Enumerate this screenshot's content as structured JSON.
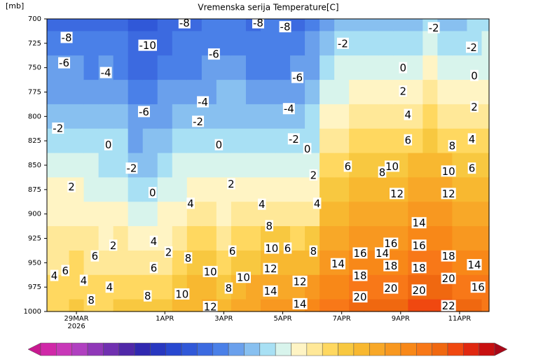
{
  "chart_data": {
    "type": "contour",
    "title": "Vremenska serija Temperature[C]",
    "y_label": "[mb]",
    "xlim": [
      "2026-03-28T00:00Z",
      "2026-04-12T00:00Z"
    ],
    "ylim": [
      1000,
      700
    ],
    "yticks": [
      700,
      725,
      750,
      775,
      800,
      825,
      850,
      875,
      900,
      925,
      950,
      975,
      1000
    ],
    "xticks": [
      {
        "value": "2026-03-29T00:00Z",
        "label": "29MAR\n2026"
      },
      {
        "value": "2026-04-01T00:00Z",
        "label": "1APR"
      },
      {
        "value": "2026-04-03T00:00Z",
        "label": "3APR"
      },
      {
        "value": "2026-04-05T00:00Z",
        "label": "5APR"
      },
      {
        "value": "2026-04-07T00:00Z",
        "label": "7APR"
      },
      {
        "value": "2026-04-09T00:00Z",
        "label": "9APR"
      },
      {
        "value": "2026-04-11T00:00Z",
        "label": "11APR"
      }
    ],
    "x": [
      "2026-03-28T00:00Z",
      "2026-03-28T12:00Z",
      "2026-03-29T00:00Z",
      "2026-03-29T12:00Z",
      "2026-03-30T00:00Z",
      "2026-03-30T12:00Z",
      "2026-03-31T00:00Z",
      "2026-03-31T12:00Z",
      "2026-04-01T00:00Z",
      "2026-04-01T12:00Z",
      "2026-04-02T00:00Z",
      "2026-04-02T12:00Z",
      "2026-04-03T00:00Z",
      "2026-04-03T12:00Z",
      "2026-04-04T00:00Z",
      "2026-04-04T12:00Z",
      "2026-04-05T00:00Z",
      "2026-04-05T12:00Z",
      "2026-04-06T00:00Z",
      "2026-04-06T12:00Z",
      "2026-04-07T00:00Z",
      "2026-04-07T12:00Z",
      "2026-04-08T00:00Z",
      "2026-04-08T12:00Z",
      "2026-04-09T00:00Z",
      "2026-04-09T12:00Z",
      "2026-04-10T00:00Z",
      "2026-04-10T12:00Z",
      "2026-04-11T00:00Z",
      "2026-04-11T12:00Z",
      "2026-04-12T00:00Z"
    ],
    "y": [
      700,
      725,
      750,
      775,
      800,
      825,
      850,
      875,
      900,
      925,
      950,
      975,
      1000
    ],
    "z": [
      [
        -9,
        -8,
        -6,
        -5,
        -3,
        -2,
        0,
        2,
        3,
        4,
        5,
        6,
        7
      ],
      [
        -9,
        -8,
        -6,
        -5,
        -3,
        -2,
        0,
        2,
        3,
        4,
        5,
        6,
        7
      ],
      [
        -9,
        -8,
        -6,
        -5,
        -3,
        -1,
        0,
        2,
        3,
        4,
        6,
        7,
        8
      ],
      [
        -9,
        -8,
        -7,
        -5,
        -4,
        -2,
        0,
        1,
        3,
        4,
        5,
        6,
        7
      ],
      [
        -9,
        -8,
        -6,
        -5,
        -4,
        -2,
        -1,
        1,
        2,
        3,
        5,
        6,
        7
      ],
      [
        -10,
        -8,
        -7,
        -5,
        -4,
        -2,
        -1,
        1,
        2,
        4,
        5,
        7,
        8
      ],
      [
        -11,
        -10,
        -9,
        -7,
        -6,
        -5,
        -3,
        -1,
        1,
        3,
        5,
        7,
        8
      ],
      [
        -11,
        -10,
        -9,
        -7,
        -6,
        -4,
        -3,
        -1,
        1,
        3,
        5,
        7,
        8
      ],
      [
        -10,
        -9,
        -8,
        -6,
        -5,
        -3,
        -2,
        0,
        2,
        3,
        5,
        7,
        9
      ],
      [
        -9,
        -8,
        -7,
        -5,
        -3,
        -2,
        0,
        1,
        3,
        5,
        7,
        9,
        10
      ],
      [
        -9,
        -8,
        -7,
        -5,
        -3,
        -1,
        0,
        2,
        4,
        6,
        8,
        10,
        11
      ],
      [
        -8,
        -7,
        -6,
        -5,
        -3,
        -1,
        1,
        2,
        4,
        6,
        8,
        10,
        12
      ],
      [
        -8,
        -7,
        -6,
        -4,
        -3,
        -1,
        0,
        2,
        3,
        5,
        7,
        9,
        11
      ],
      [
        -8,
        -7,
        -6,
        -4,
        -3,
        -1,
        1,
        2,
        4,
        6,
        9,
        11,
        13
      ],
      [
        -9,
        -8,
        -7,
        -5,
        -3,
        -1,
        1,
        2,
        4,
        7,
        9,
        12,
        13
      ],
      [
        -8,
        -8,
        -7,
        -5,
        -4,
        -2,
        0,
        2,
        5,
        8,
        11,
        13,
        14
      ],
      [
        -8,
        -8,
        -7,
        -6,
        -4,
        -2,
        0,
        2,
        5,
        8,
        11,
        13,
        15
      ],
      [
        -9,
        -7,
        -6,
        -5,
        -4,
        -2,
        0,
        2,
        4,
        7,
        10,
        12,
        14
      ],
      [
        -7,
        -6,
        -5,
        -3,
        -2,
        -1,
        1,
        3,
        5,
        8,
        11,
        14,
        17
      ],
      [
        -5,
        -3,
        -1,
        1,
        3,
        4,
        6,
        8,
        10,
        12,
        14,
        16,
        18
      ],
      [
        -4,
        -2,
        0,
        1,
        3,
        5,
        7,
        9,
        11,
        13,
        15,
        17,
        19
      ],
      [
        -3,
        -1,
        1,
        2,
        4,
        6,
        8,
        10,
        12,
        14,
        16,
        18,
        20
      ],
      [
        -4,
        -2,
        0,
        2,
        4,
        6,
        8,
        10,
        12,
        14,
        16,
        18,
        20
      ],
      [
        -3,
        -1,
        1,
        3,
        5,
        7,
        9,
        11,
        13,
        15,
        17,
        19,
        21
      ],
      [
        -3,
        -1,
        1,
        3,
        5,
        7,
        9,
        11,
        13,
        15,
        17,
        19,
        21
      ],
      [
        -3,
        -1,
        1,
        3,
        5,
        7,
        10,
        12,
        14,
        16,
        18,
        20,
        22
      ],
      [
        -2,
        0,
        2,
        4,
        6,
        8,
        10,
        12,
        14,
        16,
        18,
        20,
        22
      ],
      [
        -3,
        -1,
        1,
        3,
        5,
        7,
        10,
        12,
        14,
        16,
        18,
        20,
        22
      ],
      [
        -3,
        -2,
        0,
        2,
        4,
        7,
        9,
        11,
        13,
        15,
        17,
        19,
        21
      ],
      [
        -2,
        -1,
        1,
        3,
        5,
        7,
        9,
        11,
        13,
        15,
        17,
        19,
        20
      ],
      [
        -1,
        0,
        1,
        2,
        4,
        6,
        8,
        10,
        12,
        14,
        16,
        18,
        19
      ]
    ],
    "levels": [
      -30,
      -28,
      -26,
      -24,
      -22,
      -20,
      -18,
      -16,
      -14,
      -12,
      -10,
      -8,
      -6,
      -4,
      -2,
      0,
      2,
      4,
      6,
      8,
      10,
      12,
      14,
      16,
      18,
      20,
      22,
      24,
      26,
      28
    ],
    "colors": [
      "#c81890",
      "#d028a8",
      "#c838b8",
      "#b040c0",
      "#9038b8",
      "#7030b0",
      "#5028a8",
      "#3028b0",
      "#2838c0",
      "#2848d0",
      "#3058d8",
      "#3c6ae0",
      "#4a80e8",
      "#6aa0ec",
      "#88c0f0",
      "#a8e0f4",
      "#d8f4ec",
      "#fff4c4",
      "#ffe898",
      "#ffd860",
      "#f8c840",
      "#f8b830",
      "#f8a828",
      "#f89820",
      "#f88818",
      "#f87818",
      "#f06810",
      "#f04810",
      "#e02810",
      "#c81010",
      "#a80818"
    ],
    "contour_labels": [
      {
        "x": "2026-03-28T16:00Z",
        "y": 719,
        "value": -8
      },
      {
        "x": "2026-03-28T14:00Z",
        "y": 745,
        "value": -6
      },
      {
        "x": "2026-03-28T09:00Z",
        "y": 812,
        "value": -2
      },
      {
        "x": "2026-03-28T20:00Z",
        "y": 872,
        "value": 2
      },
      {
        "x": "2026-03-28T06:00Z",
        "y": 963,
        "value": 4
      },
      {
        "x": "2026-03-28T15:00Z",
        "y": 958,
        "value": 6
      },
      {
        "x": "2026-03-29T06:00Z",
        "y": 968,
        "value": 4
      },
      {
        "x": "2026-03-30T00:00Z",
        "y": 755,
        "value": -4
      },
      {
        "x": "2026-03-30T02:00Z",
        "y": 829,
        "value": 0
      },
      {
        "x": "2026-03-29T12:00Z",
        "y": 988,
        "value": 8
      },
      {
        "x": "2026-03-29T15:00Z",
        "y": 943,
        "value": 6
      },
      {
        "x": "2026-03-30T03:00Z",
        "y": 975,
        "value": 4
      },
      {
        "x": "2026-03-30T06:00Z",
        "y": 932,
        "value": 2
      },
      {
        "x": "2026-03-31T10:00Z",
        "y": 727,
        "value": -10
      },
      {
        "x": "2026-03-31T07:00Z",
        "y": 795,
        "value": -6
      },
      {
        "x": "2026-03-30T21:00Z",
        "y": 853,
        "value": -2
      },
      {
        "x": "2026-03-31T14:00Z",
        "y": 878,
        "value": 0
      },
      {
        "x": "2026-03-31T15:00Z",
        "y": 955,
        "value": 6
      },
      {
        "x": "2026-03-31T10:00Z",
        "y": 984,
        "value": 8
      },
      {
        "x": "2026-03-31T15:00Z",
        "y": 928,
        "value": 4
      },
      {
        "x": "2026-04-01T03:00Z",
        "y": 939,
        "value": 2
      },
      {
        "x": "2026-04-01T19:00Z",
        "y": 945,
        "value": 8
      },
      {
        "x": "2026-04-01T14:00Z",
        "y": 982,
        "value": 10
      },
      {
        "x": "2026-04-01T21:00Z",
        "y": 889,
        "value": 4
      },
      {
        "x": "2026-04-02T03:00Z",
        "y": 805,
        "value": -2
      },
      {
        "x": "2026-04-02T07:00Z",
        "y": 785,
        "value": -4
      },
      {
        "x": "2026-04-02T16:00Z",
        "y": 736,
        "value": -6
      },
      {
        "x": "2026-04-01T16:00Z",
        "y": 704,
        "value": -8
      },
      {
        "x": "2026-04-02T20:00Z",
        "y": 829,
        "value": 0
      },
      {
        "x": "2026-04-03T06:00Z",
        "y": 869,
        "value": 2
      },
      {
        "x": "2026-04-03T07:00Z",
        "y": 938,
        "value": 6
      },
      {
        "x": "2026-04-02T13:00Z",
        "y": 959,
        "value": 10
      },
      {
        "x": "2026-04-03T04:00Z",
        "y": 976,
        "value": 8
      },
      {
        "x": "2026-04-02T13:00Z",
        "y": 995,
        "value": 12
      },
      {
        "x": "2026-04-03T16:00Z",
        "y": 965,
        "value": 10
      },
      {
        "x": "2026-04-04T04:00Z",
        "y": 704,
        "value": -8
      },
      {
        "x": "2026-04-05T02:00Z",
        "y": 708,
        "value": -8
      },
      {
        "x": "2026-04-05T12:00Z",
        "y": 760,
        "value": -6
      },
      {
        "x": "2026-04-05T05:00Z",
        "y": 792,
        "value": -4
      },
      {
        "x": "2026-04-05T09:00Z",
        "y": 823,
        "value": -2
      },
      {
        "x": "2026-04-05T20:00Z",
        "y": 833,
        "value": 0
      },
      {
        "x": "2026-04-04T07:00Z",
        "y": 890,
        "value": 4
      },
      {
        "x": "2026-04-04T13:00Z",
        "y": 912,
        "value": 8
      },
      {
        "x": "2026-04-04T15:00Z",
        "y": 935,
        "value": 10
      },
      {
        "x": "2026-04-05T04:00Z",
        "y": 935,
        "value": 6
      },
      {
        "x": "2026-04-04T14:00Z",
        "y": 956,
        "value": 12
      },
      {
        "x": "2026-04-04T14:00Z",
        "y": 979,
        "value": 14
      },
      {
        "x": "2026-04-05T14:00Z",
        "y": 969,
        "value": 12
      },
      {
        "x": "2026-04-05T14:00Z",
        "y": 992,
        "value": 14
      },
      {
        "x": "2026-04-06T01:00Z",
        "y": 938,
        "value": 8
      },
      {
        "x": "2026-04-06T04:00Z",
        "y": 889,
        "value": 4
      },
      {
        "x": "2026-04-06T01:00Z",
        "y": 860,
        "value": 2
      },
      {
        "x": "2026-04-07T01:00Z",
        "y": 725,
        "value": -2
      },
      {
        "x": "2026-04-07T05:00Z",
        "y": 851,
        "value": 6
      },
      {
        "x": "2026-04-06T21:00Z",
        "y": 951,
        "value": 14
      },
      {
        "x": "2026-04-07T15:00Z",
        "y": 940,
        "value": 16
      },
      {
        "x": "2026-04-07T15:00Z",
        "y": 963,
        "value": 18
      },
      {
        "x": "2026-04-07T15:00Z",
        "y": 985,
        "value": 20
      },
      {
        "x": "2026-04-08T09:00Z",
        "y": 857,
        "value": 8
      },
      {
        "x": "2026-04-08T17:00Z",
        "y": 851,
        "value": 10
      },
      {
        "x": "2026-04-08T21:00Z",
        "y": 879,
        "value": 12
      },
      {
        "x": "2026-04-08T09:00Z",
        "y": 940,
        "value": 14
      },
      {
        "x": "2026-04-08T16:00Z",
        "y": 930,
        "value": 16
      },
      {
        "x": "2026-04-08T16:00Z",
        "y": 953,
        "value": 18
      },
      {
        "x": "2026-04-08T16:00Z",
        "y": 976,
        "value": 20
      },
      {
        "x": "2026-04-09T02:00Z",
        "y": 750,
        "value": 0
      },
      {
        "x": "2026-04-09T02:00Z",
        "y": 774,
        "value": 2
      },
      {
        "x": "2026-04-09T06:00Z",
        "y": 798,
        "value": 4
      },
      {
        "x": "2026-04-09T06:00Z",
        "y": 824,
        "value": 6
      },
      {
        "x": "2026-04-09T15:00Z",
        "y": 909,
        "value": 14
      },
      {
        "x": "2026-04-09T15:00Z",
        "y": 932,
        "value": 16
      },
      {
        "x": "2026-04-09T15:00Z",
        "y": 955,
        "value": 18
      },
      {
        "x": "2026-04-09T15:00Z",
        "y": 978,
        "value": 20
      },
      {
        "x": "2026-04-10T03:00Z",
        "y": 709,
        "value": -2
      },
      {
        "x": "2026-04-10T18:00Z",
        "y": 830,
        "value": 8
      },
      {
        "x": "2026-04-10T15:00Z",
        "y": 856,
        "value": 10
      },
      {
        "x": "2026-04-10T15:00Z",
        "y": 879,
        "value": 12
      },
      {
        "x": "2026-04-10T15:00Z",
        "y": 943,
        "value": 18
      },
      {
        "x": "2026-04-10T15:00Z",
        "y": 966,
        "value": 20
      },
      {
        "x": "2026-04-10T15:00Z",
        "y": 994,
        "value": 22
      },
      {
        "x": "2026-04-11T12:00Z",
        "y": 758,
        "value": 0
      },
      {
        "x": "2026-04-11T12:00Z",
        "y": 790,
        "value": 2
      },
      {
        "x": "2026-04-11T10:00Z",
        "y": 823,
        "value": 4
      },
      {
        "x": "2026-04-11T10:00Z",
        "y": 853,
        "value": 6
      },
      {
        "x": "2026-04-11T10:00Z",
        "y": 729,
        "value": -2
      },
      {
        "x": "2026-04-11T12:00Z",
        "y": 952,
        "value": 14
      },
      {
        "x": "2026-04-11T15:00Z",
        "y": 975,
        "value": 16
      }
    ]
  }
}
